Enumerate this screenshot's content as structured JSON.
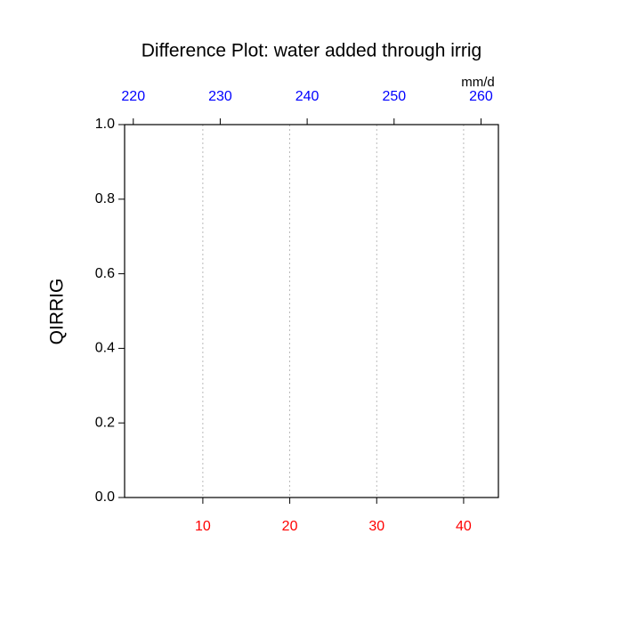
{
  "chart_data": {
    "type": "line",
    "title": "Difference Plot: water added through irrig",
    "ylabel": "QIRRIG",
    "x2label": "mm/d",
    "series": [],
    "xlim": [
      1,
      44
    ],
    "xticks": [
      10,
      20,
      30,
      40
    ],
    "xtick_color": "#ff0000",
    "x2lim": [
      219,
      262
    ],
    "x2ticks": [
      220,
      230,
      240,
      250,
      260
    ],
    "x2tick_color": "#0000ff",
    "ylim": [
      0,
      1
    ],
    "yticks": [
      {
        "value": 0,
        "label": "0.0"
      },
      0.2,
      0.4,
      0.6,
      0.8,
      {
        "value": 1,
        "label": "1.0"
      }
    ],
    "grid": true
  }
}
